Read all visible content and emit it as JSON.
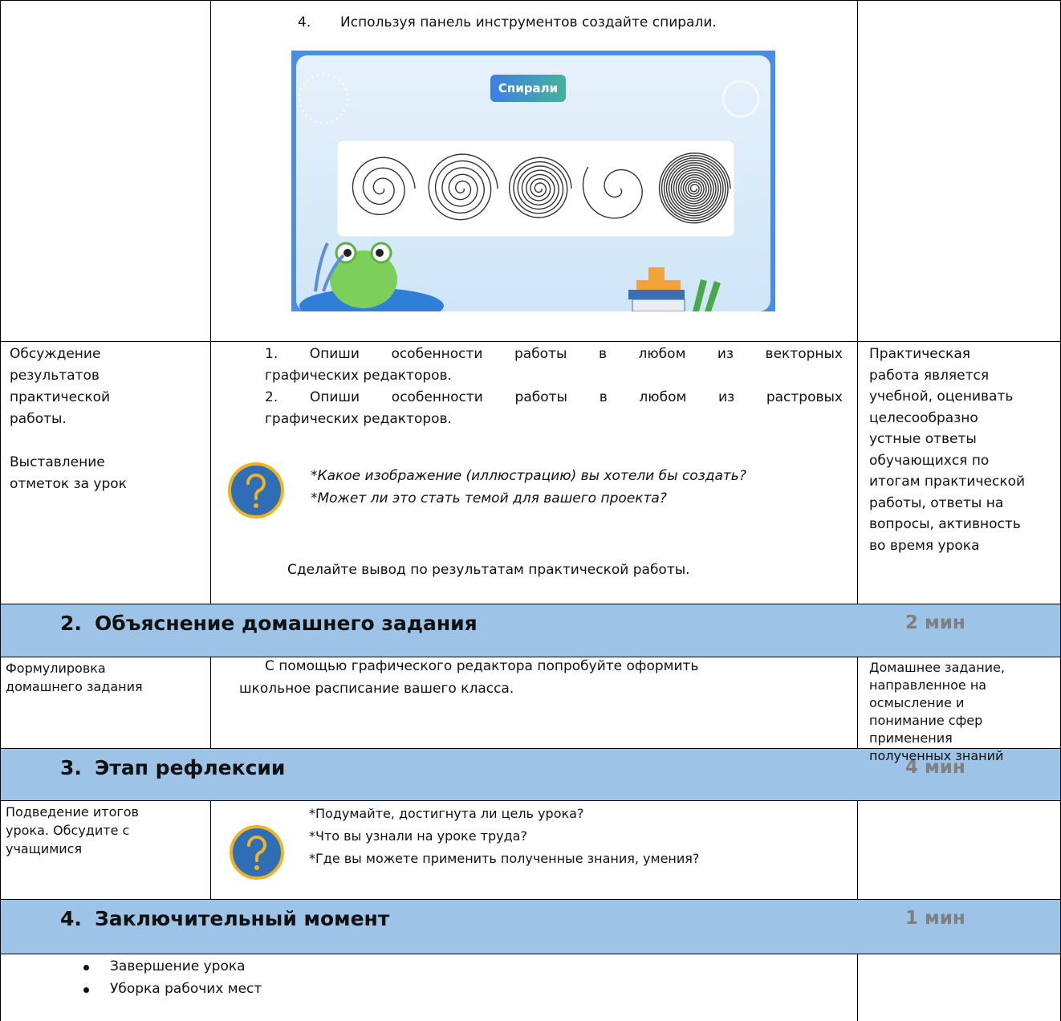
{
  "step4": {
    "number": "4.",
    "text": "Используя панель инструментов создайте спирали."
  },
  "image": {
    "button": "Спирали"
  },
  "discussion": {
    "left": [
      "Обсуждение",
      "результатов",
      "практической",
      "работы."
    ],
    "left2": [
      "Выставление",
      "отметок за урок"
    ],
    "items": [
      [
        "1. Опиши особенности работы в любом из векторных",
        "графических редакторов."
      ],
      [
        "2. Опиши особенности работы в любом из растровых",
        "графических редакторов."
      ]
    ],
    "questions": [
      "*Какое изображение (иллюстрацию) вы хотели бы создать?",
      "*Может ли это стать темой для вашего проекта?"
    ],
    "conclusion": "Сделайте вывод по результатам практической работы.",
    "right": [
      "Практическая",
      "работа является",
      "учебной, оценивать",
      "целесообразно",
      "устные ответы",
      "обучающихся по",
      "итогам практической",
      "работы, ответы на",
      "вопросы, активность",
      "во время урока"
    ]
  },
  "sections": [
    {
      "number": "2.",
      "title": "Объяснение домашнего задания",
      "time": "2 мин"
    },
    {
      "number": "3.",
      "title": "Этап рефлексии",
      "time": "4 мин"
    },
    {
      "number": "4.",
      "title": "Заключительный момент",
      "time": "1 мин"
    }
  ],
  "homework": {
    "left": [
      "Формулировка",
      "домашнего задания"
    ],
    "text": [
      "С помощью графического редактора попробуйте оформить",
      "школьное расписание вашего класса."
    ],
    "right": [
      "Домашнее задание,",
      "направленное на",
      "осмысление и",
      "понимание сфер",
      "применения",
      "полученных знаний"
    ]
  },
  "reflection": {
    "left": [
      "Подведение итогов",
      "урока. Обсудите с",
      "учащимися"
    ],
    "questions": [
      "*Подумайте, достигнута ли цель урока?",
      "*Что вы узнали на уроке труда?",
      "*Где вы можете применить полученные знания, умения?"
    ]
  },
  "final": {
    "items": [
      "Завершение урока",
      "Уборка рабочих мест"
    ]
  }
}
